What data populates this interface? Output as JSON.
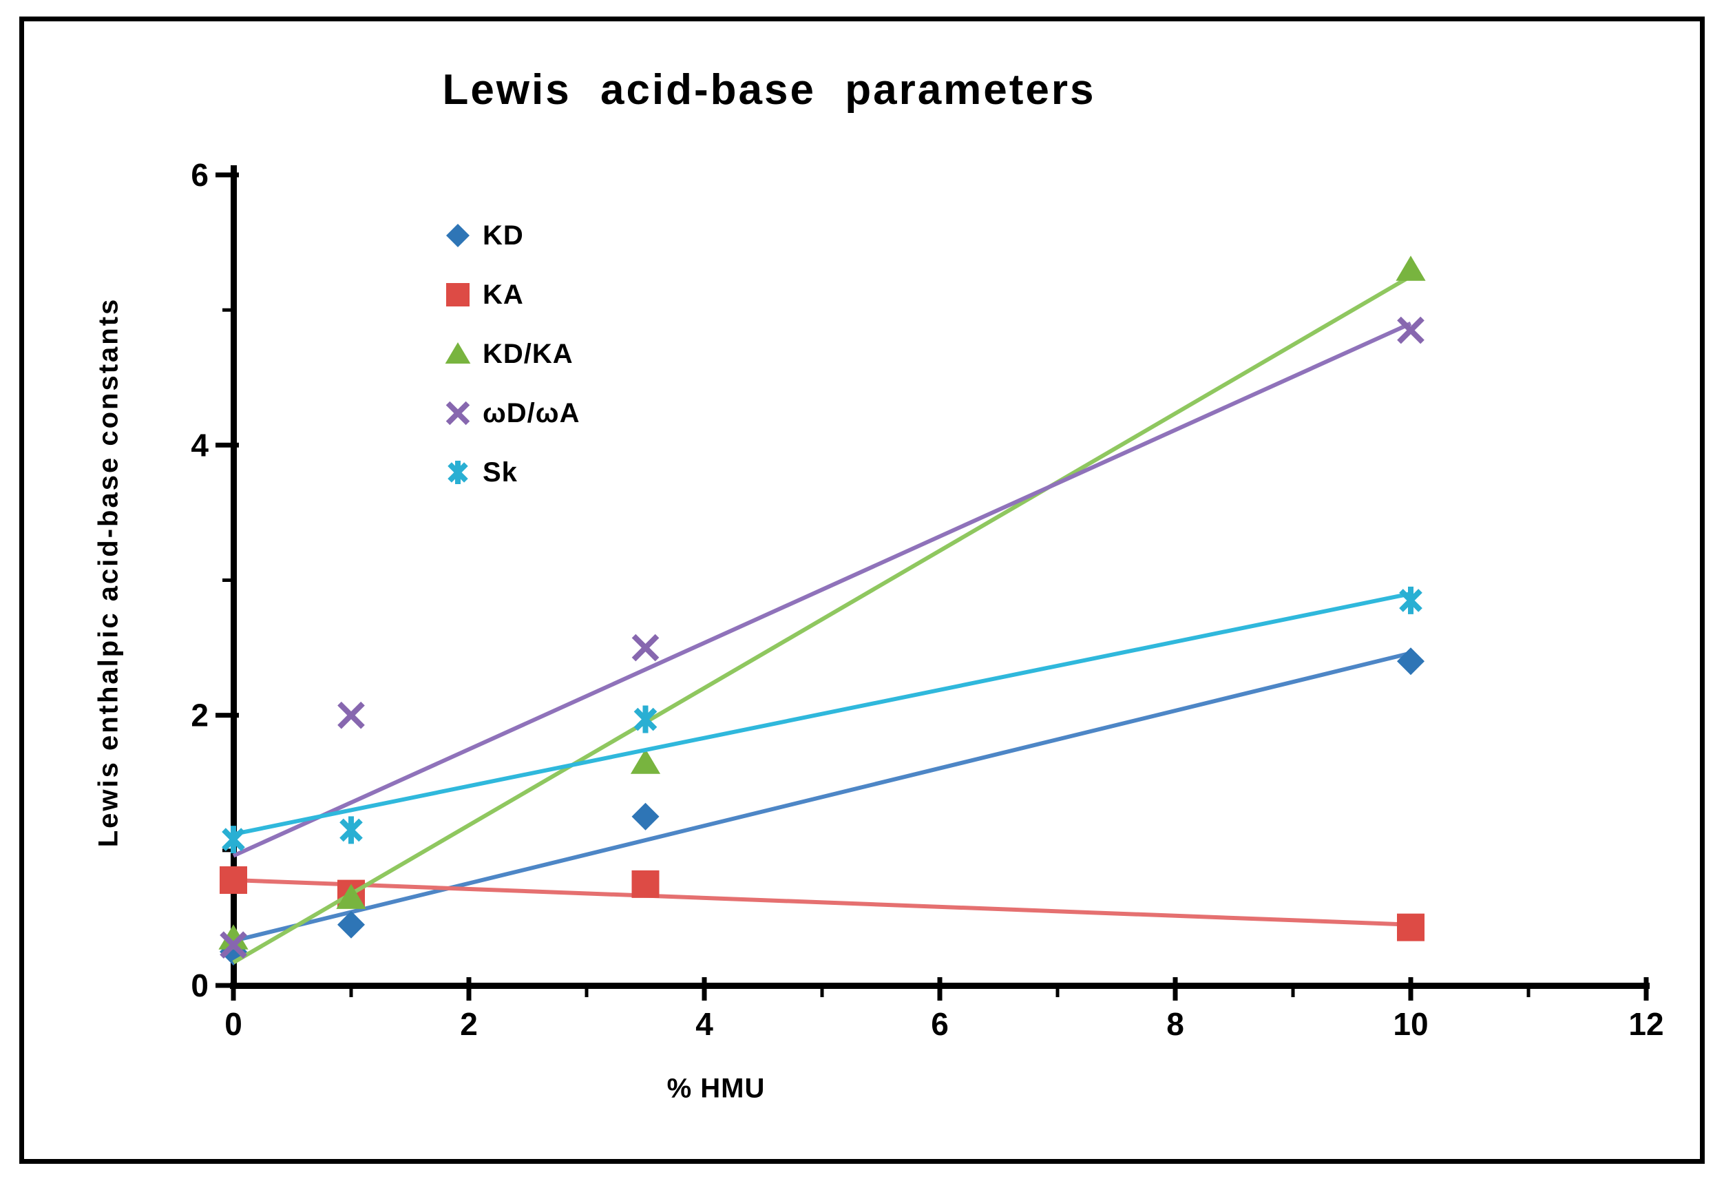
{
  "title": "Lewis acid-base parameters",
  "frame": {
    "border_color": "#000000",
    "background": "#ffffff"
  },
  "axes": {
    "x": {
      "label": "% HMU",
      "min": 0,
      "max": 12,
      "major_ticks": [
        0,
        2,
        4,
        6,
        8,
        10,
        12
      ],
      "minor_ticks": [
        1,
        3,
        5,
        7,
        9,
        11
      ]
    },
    "y": {
      "label": "Lewis enthalpic acid-base constants",
      "min": 0,
      "max": 6,
      "major_ticks": [
        0,
        2,
        4,
        6
      ],
      "minor_ticks": [
        1,
        3,
        5
      ]
    }
  },
  "legend": {
    "position": "upper-left-inside",
    "items": [
      {
        "label": "KD",
        "series": "KD"
      },
      {
        "label": "KA",
        "series": "KA"
      },
      {
        "label": "KD/KA",
        "series": "KD/KA"
      },
      {
        "label": "ωD/ωA",
        "series": "ωD/ωA"
      },
      {
        "label": "Sk",
        "series": "Sk"
      }
    ]
  },
  "chart_data": {
    "type": "scatter",
    "title": "Lewis acid-base parameters",
    "xlabel": "% HMU",
    "ylabel": "Lewis enthalpic acid-base constants",
    "xlim": [
      0,
      12
    ],
    "ylim": [
      0,
      6
    ],
    "grid": false,
    "x_values": [
      0,
      1,
      3.5,
      10
    ],
    "series": [
      {
        "name": "KD",
        "slug": "kd",
        "marker": "diamond",
        "color": "#2E75B6",
        "line_color": "#4D86C6",
        "y": [
          0.25,
          0.45,
          1.25,
          2.4
        ],
        "trendline": {
          "x1": 0,
          "y1": 0.33,
          "x2": 10,
          "y2": 2.46
        }
      },
      {
        "name": "KA",
        "slug": "ka",
        "marker": "square",
        "color": "#DD4B45",
        "line_color": "#E57070",
        "y": [
          0.78,
          0.68,
          0.75,
          0.43
        ],
        "trendline": {
          "x1": 0,
          "y1": 0.78,
          "x2": 10,
          "y2": 0.45
        }
      },
      {
        "name": "KD/KA",
        "slug": "kd-ka",
        "marker": "triangle",
        "color": "#78B43F",
        "line_color": "#8FC75F",
        "y": [
          0.35,
          0.65,
          1.65,
          5.3
        ],
        "trendline": {
          "x1": 0,
          "y1": 0.17,
          "x2": 10,
          "y2": 5.25
        }
      },
      {
        "name": "ωD/ωA",
        "slug": "wd-wa",
        "marker": "x",
        "color": "#8767AF",
        "line_color": "#8F72BA",
        "y": [
          0.3,
          2.0,
          2.5,
          4.85
        ],
        "trendline": {
          "x1": 0,
          "y1": 0.96,
          "x2": 10,
          "y2": 4.9
        }
      },
      {
        "name": "Sk",
        "slug": "sk",
        "marker": "asterisk",
        "color": "#29AFD3",
        "line_color": "#2FB8DC",
        "y": [
          1.08,
          1.15,
          1.97,
          2.85
        ],
        "trendline": {
          "x1": 0,
          "y1": 1.12,
          "x2": 10,
          "y2": 2.9
        }
      }
    ]
  }
}
